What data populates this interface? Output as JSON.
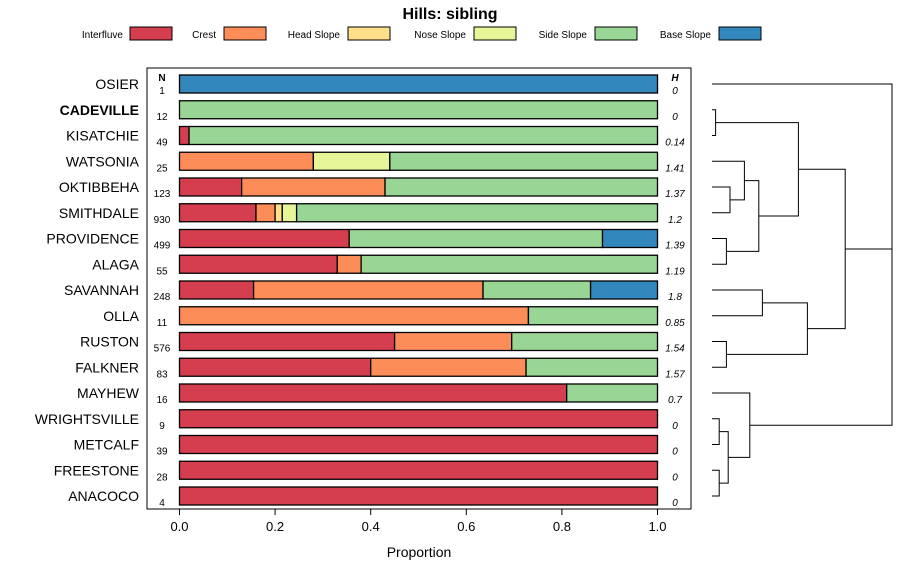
{
  "chart_data": {
    "type": "bar",
    "orientation": "horizontal",
    "stacked": true,
    "title": "Hills: sibling",
    "xlabel": "Proportion",
    "xlim": [
      0,
      1
    ],
    "xticks": [
      "0.0",
      "0.2",
      "0.4",
      "0.6",
      "0.8",
      "1.0"
    ],
    "n_header": "N",
    "h_header": "H",
    "legend_position": "top",
    "components": [
      {
        "name": "Interfluve",
        "color": "#d53e4f"
      },
      {
        "name": "Crest",
        "color": "#fc8d59"
      },
      {
        "name": "Head Slope",
        "color": "#fee08b"
      },
      {
        "name": "Nose Slope",
        "color": "#e6f598"
      },
      {
        "name": "Side Slope",
        "color": "#99d594"
      },
      {
        "name": "Base Slope",
        "color": "#3288bd"
      }
    ],
    "rows": [
      {
        "label": "OSIER",
        "bold": false,
        "n": "1",
        "h": "0",
        "values": [
          0,
          0,
          0,
          0,
          0,
          1.0
        ]
      },
      {
        "label": "CADEVILLE",
        "bold": true,
        "n": "12",
        "h": "0",
        "values": [
          0,
          0,
          0,
          0,
          1.0,
          0
        ]
      },
      {
        "label": "KISATCHIE",
        "bold": false,
        "n": "49",
        "h": "0.14",
        "values": [
          0.02,
          0,
          0,
          0,
          0.98,
          0
        ]
      },
      {
        "label": "WATSONIA",
        "bold": false,
        "n": "25",
        "h": "1.41",
        "values": [
          0,
          0.28,
          0,
          0.16,
          0.56,
          0
        ]
      },
      {
        "label": "OKTIBBEHA",
        "bold": false,
        "n": "123",
        "h": "1.37",
        "values": [
          0.13,
          0.3,
          0,
          0,
          0.57,
          0
        ]
      },
      {
        "label": "SMITHDALE",
        "bold": false,
        "n": "930",
        "h": "1.2",
        "values": [
          0.16,
          0.04,
          0.015,
          0.03,
          0.755,
          0
        ]
      },
      {
        "label": "PROVIDENCE",
        "bold": false,
        "n": "499",
        "h": "1.39",
        "values": [
          0.355,
          0,
          0,
          0,
          0.53,
          0.115
        ]
      },
      {
        "label": "ALAGA",
        "bold": false,
        "n": "55",
        "h": "1.19",
        "values": [
          0.33,
          0.05,
          0,
          0,
          0.62,
          0
        ]
      },
      {
        "label": "SAVANNAH",
        "bold": false,
        "n": "248",
        "h": "1.8",
        "values": [
          0.155,
          0.48,
          0,
          0,
          0.225,
          0.14
        ]
      },
      {
        "label": "OLLA",
        "bold": false,
        "n": "11",
        "h": "0.85",
        "values": [
          0,
          0.73,
          0,
          0,
          0.27,
          0
        ]
      },
      {
        "label": "RUSTON",
        "bold": false,
        "n": "576",
        "h": "1.54",
        "values": [
          0.45,
          0.245,
          0,
          0,
          0.305,
          0
        ]
      },
      {
        "label": "FALKNER",
        "bold": false,
        "n": "83",
        "h": "1.57",
        "values": [
          0.4,
          0.325,
          0,
          0,
          0.275,
          0
        ]
      },
      {
        "label": "MAYHEW",
        "bold": false,
        "n": "16",
        "h": "0.7",
        "values": [
          0.81,
          0,
          0,
          0,
          0.19,
          0
        ]
      },
      {
        "label": "WRIGHTSVILLE",
        "bold": false,
        "n": "9",
        "h": "0",
        "values": [
          1.0,
          0,
          0,
          0,
          0,
          0
        ]
      },
      {
        "label": "METCALF",
        "bold": false,
        "n": "39",
        "h": "0",
        "values": [
          1.0,
          0,
          0,
          0,
          0,
          0
        ]
      },
      {
        "label": "FREESTONE",
        "bold": false,
        "n": "28",
        "h": "0",
        "values": [
          1.0,
          0,
          0,
          0,
          0,
          0
        ]
      },
      {
        "label": "ANACOCO",
        "bold": false,
        "n": "4",
        "h": "0",
        "values": [
          1.0,
          0,
          0,
          0,
          0,
          0
        ]
      }
    ],
    "dendrogram": {
      "description": "hierarchical clustering of row profiles",
      "merges": [
        {
          "a": "CADEVILLE",
          "b": "KISATCHIE",
          "height": 0.02
        },
        {
          "a": "OKTIBBEHA",
          "b": "SMITHDALE",
          "height": 0.1
        },
        {
          "a": "PROVIDENCE",
          "b": "ALAGA",
          "height": 0.08
        },
        {
          "a": "WATSONIA",
          "b": "OKTIBBEHA+SMITHDALE",
          "height": 0.18
        },
        {
          "a": "WATSONIA+OKTIBBEHA+SMITHDALE",
          "b": "PROVIDENCE+ALAGA",
          "height": 0.26
        },
        {
          "a": "CADEVILLE+KISATCHIE",
          "b": "WATSONIA+OKTIBBEHA+SMITHDALE+PROVIDENCE+ALAGA",
          "height": 0.48
        },
        {
          "a": "SAVANNAH",
          "b": "OLLA",
          "height": 0.28
        },
        {
          "a": "RUSTON",
          "b": "FALKNER",
          "height": 0.08
        },
        {
          "a": "SAVANNAH+OLLA",
          "b": "RUSTON+FALKNER",
          "height": 0.53
        },
        {
          "a": "CADEVILLE..ALAGA",
          "b": "SAVANNAH..FALKNER",
          "height": 0.74
        },
        {
          "a": "WRIGHTSVILLE",
          "b": "METCALF",
          "height": 0.04
        },
        {
          "a": "FREESTONE",
          "b": "ANACOCO",
          "height": 0.04
        },
        {
          "a": "WRIGHTSVILLE+METCALF",
          "b": "FREESTONE+ANACOCO",
          "height": 0.09
        },
        {
          "a": "MAYHEW",
          "b": "WRIGHTSVILLE..ANACOCO",
          "height": 0.21
        },
        {
          "a": "OSIER",
          "b": "CADEVILLE..FALKNER",
          "height": 1.0
        },
        {
          "a": "OSIER..FALKNER",
          "b": "MAYHEW..ANACOCO",
          "height": 1.0
        }
      ]
    }
  }
}
